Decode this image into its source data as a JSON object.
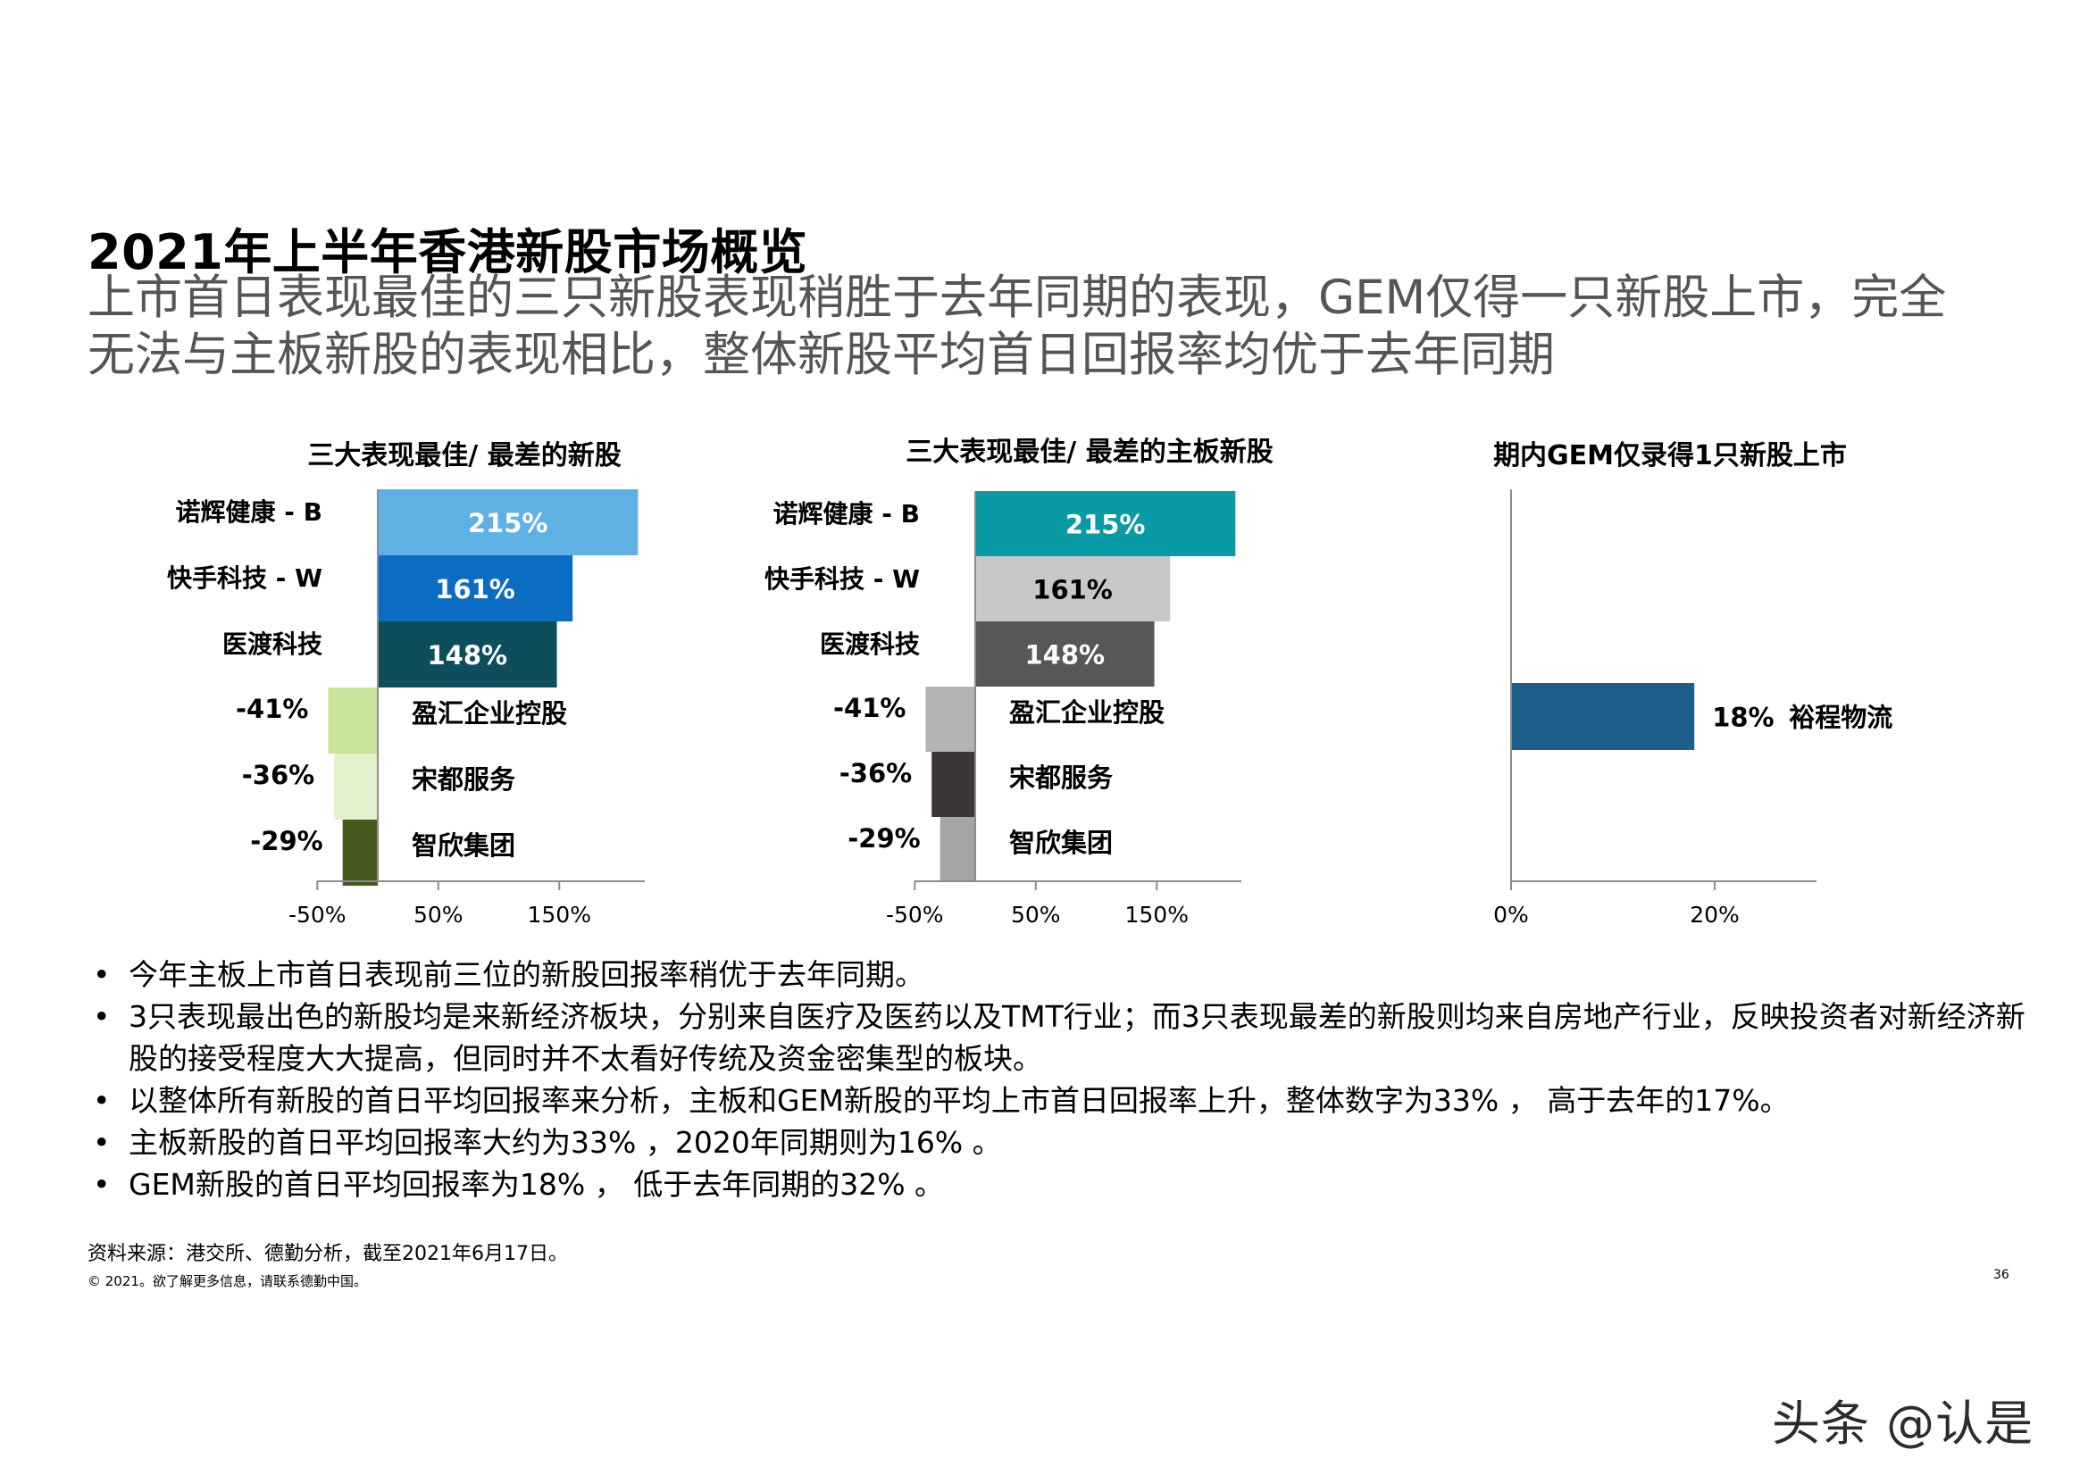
{
  "title": "2021年上半年香港新股市场概览",
  "subtitle": "上市首日表现最佳的三只新股表现稍胜于去年同期的表现，GEM仅得一只新股上市，完全无法与主板新股的表现相比，整体新股平均首日回报率均优于去年同期",
  "chart_data": [
    {
      "type": "bar",
      "orientation": "horizontal",
      "title": "三大表现最佳/ 最差的新股",
      "xticks": [
        "-50%",
        "50%",
        "150%"
      ],
      "xlim": [
        -50,
        220
      ],
      "categories": [
        "诺辉健康 - B",
        "快手科技 - W",
        "医渡科技",
        "盈汇企业控股",
        "宋都服务",
        "智欣集团"
      ],
      "values": [
        215,
        161,
        148,
        -41,
        -36,
        -29
      ],
      "labels": [
        "215%",
        "161%",
        "148%",
        "-41%",
        "-36%",
        "-29%"
      ],
      "colors": [
        "#5fb0e4",
        "#0a6cc2",
        "#0d4d5c",
        "#c9e39a",
        "#e3f1cc",
        "#43591c"
      ]
    },
    {
      "type": "bar",
      "orientation": "horizontal",
      "title": "三大表现最佳/ 最差的主板新股",
      "xticks": [
        "-50%",
        "50%",
        "150%"
      ],
      "xlim": [
        -50,
        220
      ],
      "categories": [
        "诺辉健康 - B",
        "快手科技 - W",
        "医渡科技",
        "盈汇企业控股",
        "宋都服务",
        "智欣集团"
      ],
      "values": [
        215,
        161,
        148,
        -41,
        -36,
        -29
      ],
      "labels": [
        "215%",
        "161%",
        "148%",
        "-41%",
        "-36%",
        "-29%"
      ],
      "colors": [
        "#0a9aa5",
        "#c8c8c8",
        "#575757",
        "#b4b4b4",
        "#3b3536",
        "#a5a5a5"
      ]
    },
    {
      "type": "bar",
      "orientation": "horizontal",
      "title": "期内GEM仅录得1只新股上市",
      "xticks": [
        "0%",
        "20%"
      ],
      "xlim": [
        0,
        30
      ],
      "categories": [
        "裕程物流"
      ],
      "values": [
        18
      ],
      "labels": [
        "18%"
      ],
      "colors": [
        "#1b5f8a"
      ]
    }
  ],
  "bullets": [
    "今年主板上市首日表现前三位的新股回报率稍优于去年同期。",
    "3只表现最出色的新股均是来新经济板块，分别来自医疗及医药以及TMT行业；而3只表现最差的新股则均来自房地产行业，反映投资者对新经济新股的接受程度大大提高，但同时并不太看好传统及资金密集型的板块。",
    "以整体所有新股的首日平均回报率来分析，主板和GEM新股的平均上市首日回报率上升，整体数字为33% ， 高于去年的17%。",
    "主板新股的首日平均回报率大约为33% ，2020年同期则为16% 。",
    "GEM新股的首日平均回报率为18% ， 低于去年同期的32% 。"
  ],
  "bullet_glyph": "•",
  "source": "资料来源：港交所、德勤分析，截至2021年6月17日。",
  "copyright": "© 2021。欲了解更多信息，请联系德勤中国。",
  "page_number": "36",
  "watermark": "头条 @认是"
}
